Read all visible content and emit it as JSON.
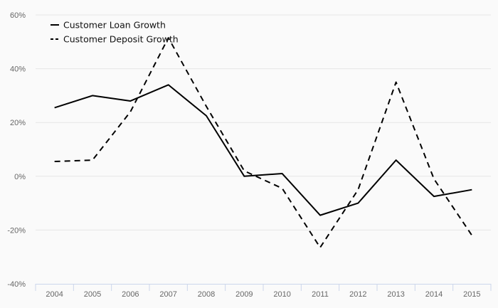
{
  "chart_data": {
    "type": "line",
    "categories": [
      "2004",
      "2005",
      "2006",
      "2007",
      "2008",
      "2009",
      "2010",
      "2011",
      "2012",
      "2013",
      "2014",
      "2015"
    ],
    "series": [
      {
        "name": "Customer Loan Growth",
        "values": [
          25.5,
          30.0,
          28.0,
          34.0,
          22.5,
          0.0,
          1.0,
          -14.5,
          -10.0,
          6.0,
          -7.5,
          -5.0
        ],
        "style": "solid",
        "color": "#000000"
      },
      {
        "name": "Customer Deposit Growth",
        "values": [
          5.5,
          6.0,
          24.0,
          51.5,
          26.0,
          2.0,
          -4.5,
          -26.5,
          -5.0,
          35.0,
          -1.0,
          -22.0
        ],
        "style": "dashed",
        "color": "#000000"
      }
    ],
    "y_ticks": [
      "60%",
      "40%",
      "20%",
      "0%",
      "-20%",
      "-40%"
    ],
    "ylim": [
      -40,
      60
    ],
    "grid": true,
    "legend": "top-left",
    "title": "",
    "xlabel": "",
    "ylabel": ""
  }
}
